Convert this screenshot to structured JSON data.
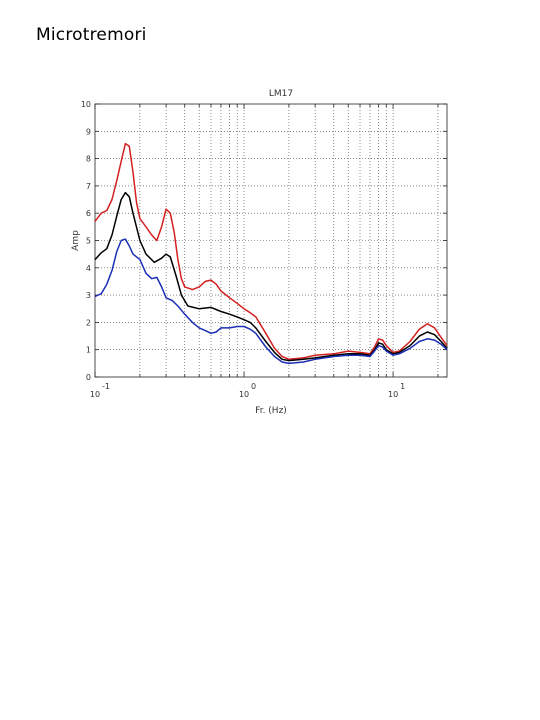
{
  "page": {
    "title": "Microtremori"
  },
  "chart_data": {
    "type": "line",
    "title": "LM17",
    "xlabel": "Fr. (Hz)",
    "ylabel": "Amp",
    "xscale": "log",
    "xlim": [
      0.1,
      23
    ],
    "ylim": [
      0,
      10
    ],
    "yticks": [
      0,
      1,
      2,
      3,
      4,
      5,
      6,
      7,
      8,
      9,
      10
    ],
    "xticks": [
      {
        "value": 0.1,
        "base": "10",
        "exp": "-1"
      },
      {
        "value": 1,
        "base": "10",
        "exp": "0"
      },
      {
        "value": 10,
        "base": "10",
        "exp": "1"
      }
    ],
    "grid": true,
    "series": [
      {
        "color": "#d42020",
        "points": [
          [
            0.1,
            5.7
          ],
          [
            0.11,
            6.0
          ],
          [
            0.12,
            6.1
          ],
          [
            0.13,
            6.5
          ],
          [
            0.14,
            7.2
          ],
          [
            0.15,
            7.9
          ],
          [
            0.16,
            8.55
          ],
          [
            0.17,
            8.45
          ],
          [
            0.18,
            7.5
          ],
          [
            0.19,
            6.4
          ],
          [
            0.2,
            5.8
          ],
          [
            0.22,
            5.5
          ],
          [
            0.24,
            5.2
          ],
          [
            0.26,
            5.0
          ],
          [
            0.28,
            5.5
          ],
          [
            0.3,
            6.15
          ],
          [
            0.32,
            6.0
          ],
          [
            0.34,
            5.3
          ],
          [
            0.36,
            4.3
          ],
          [
            0.38,
            3.6
          ],
          [
            0.4,
            3.3
          ],
          [
            0.45,
            3.2
          ],
          [
            0.5,
            3.3
          ],
          [
            0.55,
            3.5
          ],
          [
            0.6,
            3.55
          ],
          [
            0.65,
            3.4
          ],
          [
            0.7,
            3.15
          ],
          [
            0.8,
            2.9
          ],
          [
            0.9,
            2.7
          ],
          [
            1.0,
            2.5
          ],
          [
            1.1,
            2.35
          ],
          [
            1.2,
            2.2
          ],
          [
            1.4,
            1.6
          ],
          [
            1.6,
            1.05
          ],
          [
            1.8,
            0.75
          ],
          [
            2.0,
            0.65
          ],
          [
            2.5,
            0.7
          ],
          [
            3.0,
            0.8
          ],
          [
            4.0,
            0.85
          ],
          [
            5.0,
            0.95
          ],
          [
            6.0,
            0.9
          ],
          [
            7.0,
            0.85
          ],
          [
            7.5,
            1.1
          ],
          [
            8.0,
            1.4
          ],
          [
            8.5,
            1.35
          ],
          [
            9.0,
            1.15
          ],
          [
            10.0,
            0.9
          ],
          [
            11.0,
            0.95
          ],
          [
            13.0,
            1.3
          ],
          [
            15.0,
            1.75
          ],
          [
            17.0,
            1.95
          ],
          [
            19.0,
            1.8
          ],
          [
            21.0,
            1.45
          ],
          [
            23.0,
            1.15
          ]
        ]
      },
      {
        "color": "#000000",
        "points": [
          [
            0.1,
            4.3
          ],
          [
            0.11,
            4.55
          ],
          [
            0.12,
            4.7
          ],
          [
            0.13,
            5.2
          ],
          [
            0.14,
            5.9
          ],
          [
            0.15,
            6.5
          ],
          [
            0.16,
            6.75
          ],
          [
            0.17,
            6.6
          ],
          [
            0.18,
            6.0
          ],
          [
            0.2,
            5.0
          ],
          [
            0.22,
            4.5
          ],
          [
            0.25,
            4.2
          ],
          [
            0.28,
            4.35
          ],
          [
            0.3,
            4.5
          ],
          [
            0.32,
            4.4
          ],
          [
            0.35,
            3.7
          ],
          [
            0.38,
            3.0
          ],
          [
            0.42,
            2.6
          ],
          [
            0.5,
            2.5
          ],
          [
            0.6,
            2.55
          ],
          [
            0.7,
            2.4
          ],
          [
            0.8,
            2.3
          ],
          [
            0.9,
            2.2
          ],
          [
            1.0,
            2.1
          ],
          [
            1.1,
            2.0
          ],
          [
            1.2,
            1.8
          ],
          [
            1.4,
            1.3
          ],
          [
            1.6,
            0.9
          ],
          [
            1.8,
            0.65
          ],
          [
            2.0,
            0.6
          ],
          [
            2.5,
            0.65
          ],
          [
            3.0,
            0.7
          ],
          [
            4.0,
            0.8
          ],
          [
            5.0,
            0.85
          ],
          [
            6.0,
            0.85
          ],
          [
            7.0,
            0.8
          ],
          [
            7.5,
            1.0
          ],
          [
            8.0,
            1.25
          ],
          [
            8.5,
            1.2
          ],
          [
            9.0,
            1.0
          ],
          [
            10.0,
            0.85
          ],
          [
            11.0,
            0.9
          ],
          [
            13.0,
            1.15
          ],
          [
            15.0,
            1.5
          ],
          [
            17.0,
            1.65
          ],
          [
            19.0,
            1.55
          ],
          [
            21.0,
            1.3
          ],
          [
            23.0,
            1.05
          ]
        ]
      },
      {
        "color": "#1a2fb5",
        "points": [
          [
            0.1,
            2.95
          ],
          [
            0.11,
            3.05
          ],
          [
            0.12,
            3.4
          ],
          [
            0.13,
            3.9
          ],
          [
            0.14,
            4.6
          ],
          [
            0.15,
            5.0
          ],
          [
            0.16,
            5.05
          ],
          [
            0.17,
            4.8
          ],
          [
            0.18,
            4.5
          ],
          [
            0.2,
            4.3
          ],
          [
            0.22,
            3.8
          ],
          [
            0.24,
            3.6
          ],
          [
            0.26,
            3.65
          ],
          [
            0.28,
            3.3
          ],
          [
            0.3,
            2.9
          ],
          [
            0.33,
            2.8
          ],
          [
            0.36,
            2.6
          ],
          [
            0.4,
            2.3
          ],
          [
            0.45,
            2.0
          ],
          [
            0.5,
            1.8
          ],
          [
            0.55,
            1.7
          ],
          [
            0.6,
            1.6
          ],
          [
            0.65,
            1.65
          ],
          [
            0.7,
            1.8
          ],
          [
            0.8,
            1.8
          ],
          [
            0.9,
            1.85
          ],
          [
            1.0,
            1.85
          ],
          [
            1.1,
            1.75
          ],
          [
            1.2,
            1.6
          ],
          [
            1.4,
            1.1
          ],
          [
            1.6,
            0.75
          ],
          [
            1.8,
            0.55
          ],
          [
            2.0,
            0.5
          ],
          [
            2.5,
            0.55
          ],
          [
            3.0,
            0.65
          ],
          [
            4.0,
            0.75
          ],
          [
            5.0,
            0.8
          ],
          [
            6.0,
            0.8
          ],
          [
            7.0,
            0.75
          ],
          [
            7.5,
            0.95
          ],
          [
            8.0,
            1.15
          ],
          [
            8.5,
            1.1
          ],
          [
            9.0,
            0.95
          ],
          [
            10.0,
            0.8
          ],
          [
            11.0,
            0.85
          ],
          [
            13.0,
            1.05
          ],
          [
            15.0,
            1.3
          ],
          [
            17.0,
            1.4
          ],
          [
            19.0,
            1.35
          ],
          [
            21.0,
            1.2
          ],
          [
            23.0,
            1.0
          ]
        ]
      }
    ]
  }
}
